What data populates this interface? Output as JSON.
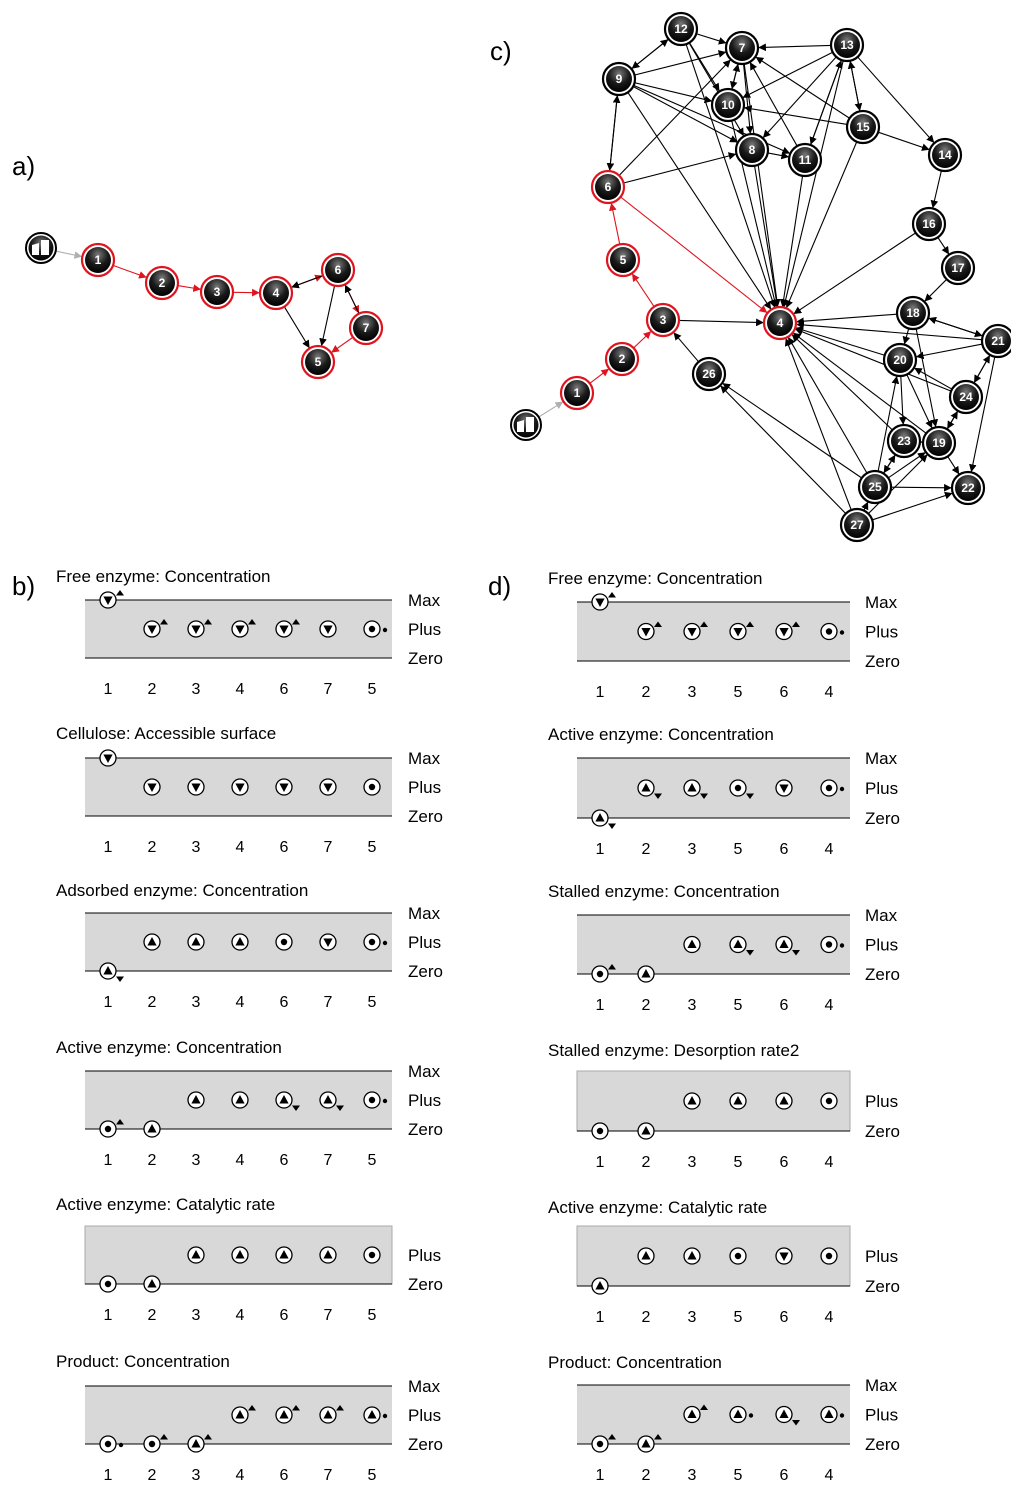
{
  "panel_labels": {
    "a": "a)",
    "b": "b)",
    "c": "c)",
    "d": "d)"
  },
  "graph_a": {
    "nodes": [
      "1",
      "2",
      "3",
      "4",
      "5",
      "6",
      "7"
    ],
    "path_nodes": [
      "1",
      "2",
      "3",
      "4",
      "5",
      "6",
      "7"
    ],
    "edges": [
      {
        "from": "start",
        "to": "1",
        "kind": "entry"
      },
      {
        "from": "1",
        "to": "2",
        "kind": "path"
      },
      {
        "from": "2",
        "to": "3",
        "kind": "path"
      },
      {
        "from": "3",
        "to": "4",
        "kind": "path"
      },
      {
        "from": "4",
        "to": "6",
        "kind": "path"
      },
      {
        "from": "6",
        "to": "7",
        "kind": "path"
      },
      {
        "from": "7",
        "to": "5",
        "kind": "path"
      },
      {
        "from": "6",
        "to": "4",
        "kind": "other"
      },
      {
        "from": "4",
        "to": "5",
        "kind": "other"
      },
      {
        "from": "6",
        "to": "5",
        "kind": "other"
      },
      {
        "from": "7",
        "to": "6",
        "kind": "other"
      }
    ]
  },
  "graph_c": {
    "nodes": [
      "1",
      "2",
      "3",
      "4",
      "5",
      "6",
      "7",
      "8",
      "9",
      "10",
      "11",
      "12",
      "13",
      "14",
      "15",
      "16",
      "17",
      "18",
      "19",
      "20",
      "21",
      "22",
      "23",
      "24",
      "25",
      "26",
      "27"
    ],
    "path_nodes": [
      "1",
      "2",
      "3",
      "4",
      "5",
      "6"
    ],
    "edges": [
      {
        "from": "start",
        "to": "1",
        "kind": "entry"
      },
      {
        "from": "1",
        "to": "2",
        "kind": "path"
      },
      {
        "from": "2",
        "to": "3",
        "kind": "path"
      },
      {
        "from": "3",
        "to": "5",
        "kind": "path"
      },
      {
        "from": "5",
        "to": "6",
        "kind": "path"
      },
      {
        "from": "6",
        "to": "4",
        "kind": "path"
      },
      {
        "from": "3",
        "to": "4",
        "kind": "other"
      },
      {
        "from": "26",
        "to": "3",
        "kind": "other"
      },
      {
        "from": "6",
        "to": "9",
        "kind": "other"
      },
      {
        "from": "9",
        "to": "6",
        "kind": "other"
      },
      {
        "from": "6",
        "to": "7",
        "kind": "other"
      },
      {
        "from": "6",
        "to": "8",
        "kind": "other"
      },
      {
        "from": "9",
        "to": "12",
        "kind": "other"
      },
      {
        "from": "12",
        "to": "9",
        "kind": "other"
      },
      {
        "from": "9",
        "to": "7",
        "kind": "other"
      },
      {
        "from": "9",
        "to": "10",
        "kind": "other"
      },
      {
        "from": "9",
        "to": "8",
        "kind": "other"
      },
      {
        "from": "9",
        "to": "11",
        "kind": "other"
      },
      {
        "from": "9",
        "to": "4",
        "kind": "other"
      },
      {
        "from": "12",
        "to": "7",
        "kind": "other"
      },
      {
        "from": "12",
        "to": "10",
        "kind": "other"
      },
      {
        "from": "12",
        "to": "8",
        "kind": "other"
      },
      {
        "from": "12",
        "to": "4",
        "kind": "other"
      },
      {
        "from": "13",
        "to": "7",
        "kind": "other"
      },
      {
        "from": "13",
        "to": "10",
        "kind": "other"
      },
      {
        "from": "13",
        "to": "8",
        "kind": "other"
      },
      {
        "from": "13",
        "to": "11",
        "kind": "other"
      },
      {
        "from": "13",
        "to": "15",
        "kind": "other"
      },
      {
        "from": "15",
        "to": "13",
        "kind": "other"
      },
      {
        "from": "13",
        "to": "14",
        "kind": "other"
      },
      {
        "from": "13",
        "to": "4",
        "kind": "other"
      },
      {
        "from": "15",
        "to": "7",
        "kind": "other"
      },
      {
        "from": "15",
        "to": "10",
        "kind": "other"
      },
      {
        "from": "15",
        "to": "14",
        "kind": "other"
      },
      {
        "from": "15",
        "to": "4",
        "kind": "other"
      },
      {
        "from": "7",
        "to": "10",
        "kind": "other"
      },
      {
        "from": "7",
        "to": "8",
        "kind": "other"
      },
      {
        "from": "7",
        "to": "4",
        "kind": "other"
      },
      {
        "from": "10",
        "to": "7",
        "kind": "other"
      },
      {
        "from": "10",
        "to": "4",
        "kind": "other"
      },
      {
        "from": "8",
        "to": "11",
        "kind": "other"
      },
      {
        "from": "8",
        "to": "4",
        "kind": "other"
      },
      {
        "from": "11",
        "to": "7",
        "kind": "other"
      },
      {
        "from": "11",
        "to": "13",
        "kind": "other"
      },
      {
        "from": "11",
        "to": "4",
        "kind": "other"
      },
      {
        "from": "14",
        "to": "16",
        "kind": "other"
      },
      {
        "from": "16",
        "to": "17",
        "kind": "other"
      },
      {
        "from": "16",
        "to": "4",
        "kind": "other"
      },
      {
        "from": "17",
        "to": "18",
        "kind": "other"
      },
      {
        "from": "18",
        "to": "4",
        "kind": "other"
      },
      {
        "from": "18",
        "to": "20",
        "kind": "other"
      },
      {
        "from": "18",
        "to": "19",
        "kind": "other"
      },
      {
        "from": "18",
        "to": "21",
        "kind": "other"
      },
      {
        "from": "21",
        "to": "18",
        "kind": "other"
      },
      {
        "from": "21",
        "to": "4",
        "kind": "other"
      },
      {
        "from": "21",
        "to": "20",
        "kind": "other"
      },
      {
        "from": "21",
        "to": "24",
        "kind": "other"
      },
      {
        "from": "24",
        "to": "21",
        "kind": "other"
      },
      {
        "from": "21",
        "to": "22",
        "kind": "other"
      },
      {
        "from": "20",
        "to": "4",
        "kind": "other"
      },
      {
        "from": "20",
        "to": "19",
        "kind": "other"
      },
      {
        "from": "20",
        "to": "23",
        "kind": "other"
      },
      {
        "from": "24",
        "to": "4",
        "kind": "other"
      },
      {
        "from": "24",
        "to": "20",
        "kind": "other"
      },
      {
        "from": "24",
        "to": "19",
        "kind": "other"
      },
      {
        "from": "19",
        "to": "24",
        "kind": "other"
      },
      {
        "from": "19",
        "to": "4",
        "kind": "other"
      },
      {
        "from": "19",
        "to": "22",
        "kind": "other"
      },
      {
        "from": "23",
        "to": "19",
        "kind": "other"
      },
      {
        "from": "23",
        "to": "4",
        "kind": "other"
      },
      {
        "from": "25",
        "to": "23",
        "kind": "other"
      },
      {
        "from": "23",
        "to": "25",
        "kind": "other"
      },
      {
        "from": "25",
        "to": "19",
        "kind": "other"
      },
      {
        "from": "25",
        "to": "4",
        "kind": "other"
      },
      {
        "from": "25",
        "to": "26",
        "kind": "other"
      },
      {
        "from": "25",
        "to": "22",
        "kind": "other"
      },
      {
        "from": "25",
        "to": "20",
        "kind": "other"
      },
      {
        "from": "27",
        "to": "25",
        "kind": "other"
      },
      {
        "from": "27",
        "to": "4",
        "kind": "other"
      },
      {
        "from": "27",
        "to": "26",
        "kind": "other"
      },
      {
        "from": "27",
        "to": "19",
        "kind": "other"
      },
      {
        "from": "27",
        "to": "22",
        "kind": "other"
      }
    ]
  },
  "behaviour_b": {
    "columns": [
      "1",
      "2",
      "3",
      "4",
      "6",
      "7",
      "5"
    ],
    "graphs": [
      {
        "title": "Free enzyme: Concentration",
        "levels": [
          "Max",
          "Plus",
          "Zero"
        ],
        "values": [
          {
            "lvl": "Max",
            "dir": "down",
            "d2": "up"
          },
          {
            "lvl": "Plus",
            "dir": "down",
            "d2": "up"
          },
          {
            "lvl": "Plus",
            "dir": "down",
            "d2": "up"
          },
          {
            "lvl": "Plus",
            "dir": "down",
            "d2": "up"
          },
          {
            "lvl": "Plus",
            "dir": "down",
            "d2": "up"
          },
          {
            "lvl": "Plus",
            "dir": "down",
            "d2": ""
          },
          {
            "lvl": "Plus",
            "dir": "steady",
            "d2": "steady"
          }
        ]
      },
      {
        "title": "Cellulose: Accessible surface",
        "levels": [
          "Max",
          "Plus",
          "Zero"
        ],
        "values": [
          {
            "lvl": "Max",
            "dir": "down",
            "d2": ""
          },
          {
            "lvl": "Plus",
            "dir": "down",
            "d2": ""
          },
          {
            "lvl": "Plus",
            "dir": "down",
            "d2": ""
          },
          {
            "lvl": "Plus",
            "dir": "down",
            "d2": ""
          },
          {
            "lvl": "Plus",
            "dir": "down",
            "d2": ""
          },
          {
            "lvl": "Plus",
            "dir": "down",
            "d2": ""
          },
          {
            "lvl": "Plus",
            "dir": "steady",
            "d2": ""
          }
        ]
      },
      {
        "title": "Adsorbed enzyme: Concentration",
        "levels": [
          "Max",
          "Plus",
          "Zero"
        ],
        "values": [
          {
            "lvl": "Zero",
            "dir": "up",
            "d2": "down"
          },
          {
            "lvl": "Plus",
            "dir": "up",
            "d2": ""
          },
          {
            "lvl": "Plus",
            "dir": "up",
            "d2": ""
          },
          {
            "lvl": "Plus",
            "dir": "up",
            "d2": ""
          },
          {
            "lvl": "Plus",
            "dir": "steady",
            "d2": ""
          },
          {
            "lvl": "Plus",
            "dir": "down",
            "d2": ""
          },
          {
            "lvl": "Plus",
            "dir": "steady",
            "d2": "steady"
          }
        ]
      },
      {
        "title": "Active enzyme: Concentration",
        "levels": [
          "Max",
          "Plus",
          "Zero"
        ],
        "values": [
          {
            "lvl": "Zero",
            "dir": "steady",
            "d2": "up"
          },
          {
            "lvl": "Zero",
            "dir": "up",
            "d2": ""
          },
          {
            "lvl": "Plus",
            "dir": "up",
            "d2": ""
          },
          {
            "lvl": "Plus",
            "dir": "up",
            "d2": ""
          },
          {
            "lvl": "Plus",
            "dir": "up",
            "d2": "down"
          },
          {
            "lvl": "Plus",
            "dir": "up",
            "d2": "down"
          },
          {
            "lvl": "Plus",
            "dir": "steady",
            "d2": "steady"
          }
        ]
      },
      {
        "title": "Active enzyme: Catalytic rate",
        "levels": [
          "Plus",
          "Zero"
        ],
        "values": [
          {
            "lvl": "Zero",
            "dir": "steady",
            "d2": ""
          },
          {
            "lvl": "Zero",
            "dir": "up",
            "d2": ""
          },
          {
            "lvl": "Plus",
            "dir": "up",
            "d2": ""
          },
          {
            "lvl": "Plus",
            "dir": "up",
            "d2": ""
          },
          {
            "lvl": "Plus",
            "dir": "up",
            "d2": ""
          },
          {
            "lvl": "Plus",
            "dir": "up",
            "d2": ""
          },
          {
            "lvl": "Plus",
            "dir": "steady",
            "d2": ""
          }
        ]
      },
      {
        "title": "Product: Concentration",
        "levels": [
          "Max",
          "Plus",
          "Zero"
        ],
        "values": [
          {
            "lvl": "Zero",
            "dir": "steady",
            "d2": "steady"
          },
          {
            "lvl": "Zero",
            "dir": "steady",
            "d2": "up"
          },
          {
            "lvl": "Zero",
            "dir": "up",
            "d2": "up"
          },
          {
            "lvl": "Plus",
            "dir": "up",
            "d2": "up"
          },
          {
            "lvl": "Plus",
            "dir": "up",
            "d2": "up"
          },
          {
            "lvl": "Plus",
            "dir": "up",
            "d2": "up"
          },
          {
            "lvl": "Plus",
            "dir": "up",
            "d2": "steady"
          }
        ]
      }
    ]
  },
  "behaviour_d": {
    "columns": [
      "1",
      "2",
      "3",
      "5",
      "6",
      "4"
    ],
    "graphs": [
      {
        "title": "Free enzyme: Concentration",
        "levels": [
          "Max",
          "Plus",
          "Zero"
        ],
        "values": [
          {
            "lvl": "Max",
            "dir": "down",
            "d2": "up"
          },
          {
            "lvl": "Plus",
            "dir": "down",
            "d2": "up"
          },
          {
            "lvl": "Plus",
            "dir": "down",
            "d2": "up"
          },
          {
            "lvl": "Plus",
            "dir": "down",
            "d2": "up"
          },
          {
            "lvl": "Plus",
            "dir": "down",
            "d2": "up"
          },
          {
            "lvl": "Plus",
            "dir": "steady",
            "d2": "steady"
          }
        ]
      },
      {
        "title": "Active enzyme: Concentration",
        "levels": [
          "Max",
          "Plus",
          "Zero"
        ],
        "values": [
          {
            "lvl": "Zero",
            "dir": "up",
            "d2": "down"
          },
          {
            "lvl": "Plus",
            "dir": "up",
            "d2": "down"
          },
          {
            "lvl": "Plus",
            "dir": "up",
            "d2": "down"
          },
          {
            "lvl": "Plus",
            "dir": "steady",
            "d2": "down"
          },
          {
            "lvl": "Plus",
            "dir": "down",
            "d2": ""
          },
          {
            "lvl": "Plus",
            "dir": "steady",
            "d2": "steady"
          }
        ]
      },
      {
        "title": "Stalled enzyme: Concentration",
        "levels": [
          "Max",
          "Plus",
          "Zero"
        ],
        "values": [
          {
            "lvl": "Zero",
            "dir": "steady",
            "d2": "up"
          },
          {
            "lvl": "Zero",
            "dir": "up",
            "d2": ""
          },
          {
            "lvl": "Plus",
            "dir": "up",
            "d2": ""
          },
          {
            "lvl": "Plus",
            "dir": "up",
            "d2": "down"
          },
          {
            "lvl": "Plus",
            "dir": "up",
            "d2": "down"
          },
          {
            "lvl": "Plus",
            "dir": "steady",
            "d2": "steady"
          }
        ]
      },
      {
        "title": "Stalled enzyme: Desorption rate2",
        "levels": [
          "Plus",
          "Zero"
        ],
        "values": [
          {
            "lvl": "Zero",
            "dir": "steady",
            "d2": ""
          },
          {
            "lvl": "Zero",
            "dir": "up",
            "d2": ""
          },
          {
            "lvl": "Plus",
            "dir": "up",
            "d2": ""
          },
          {
            "lvl": "Plus",
            "dir": "up",
            "d2": ""
          },
          {
            "lvl": "Plus",
            "dir": "up",
            "d2": ""
          },
          {
            "lvl": "Plus",
            "dir": "steady",
            "d2": ""
          }
        ]
      },
      {
        "title": "Active enzyme: Catalytic rate",
        "levels": [
          "Plus",
          "Zero"
        ],
        "values": [
          {
            "lvl": "Zero",
            "dir": "up",
            "d2": ""
          },
          {
            "lvl": "Plus",
            "dir": "up",
            "d2": ""
          },
          {
            "lvl": "Plus",
            "dir": "up",
            "d2": ""
          },
          {
            "lvl": "Plus",
            "dir": "steady",
            "d2": ""
          },
          {
            "lvl": "Plus",
            "dir": "down",
            "d2": ""
          },
          {
            "lvl": "Plus",
            "dir": "steady",
            "d2": ""
          }
        ]
      },
      {
        "title": "Product: Concentration",
        "levels": [
          "Max",
          "Plus",
          "Zero"
        ],
        "values": [
          {
            "lvl": "Zero",
            "dir": "steady",
            "d2": "up"
          },
          {
            "lvl": "Zero",
            "dir": "up",
            "d2": "up"
          },
          {
            "lvl": "Plus",
            "dir": "up",
            "d2": "up"
          },
          {
            "lvl": "Plus",
            "dir": "up",
            "d2": "steady"
          },
          {
            "lvl": "Plus",
            "dir": "up",
            "d2": "down"
          },
          {
            "lvl": "Plus",
            "dir": "up",
            "d2": "steady"
          }
        ]
      }
    ]
  }
}
